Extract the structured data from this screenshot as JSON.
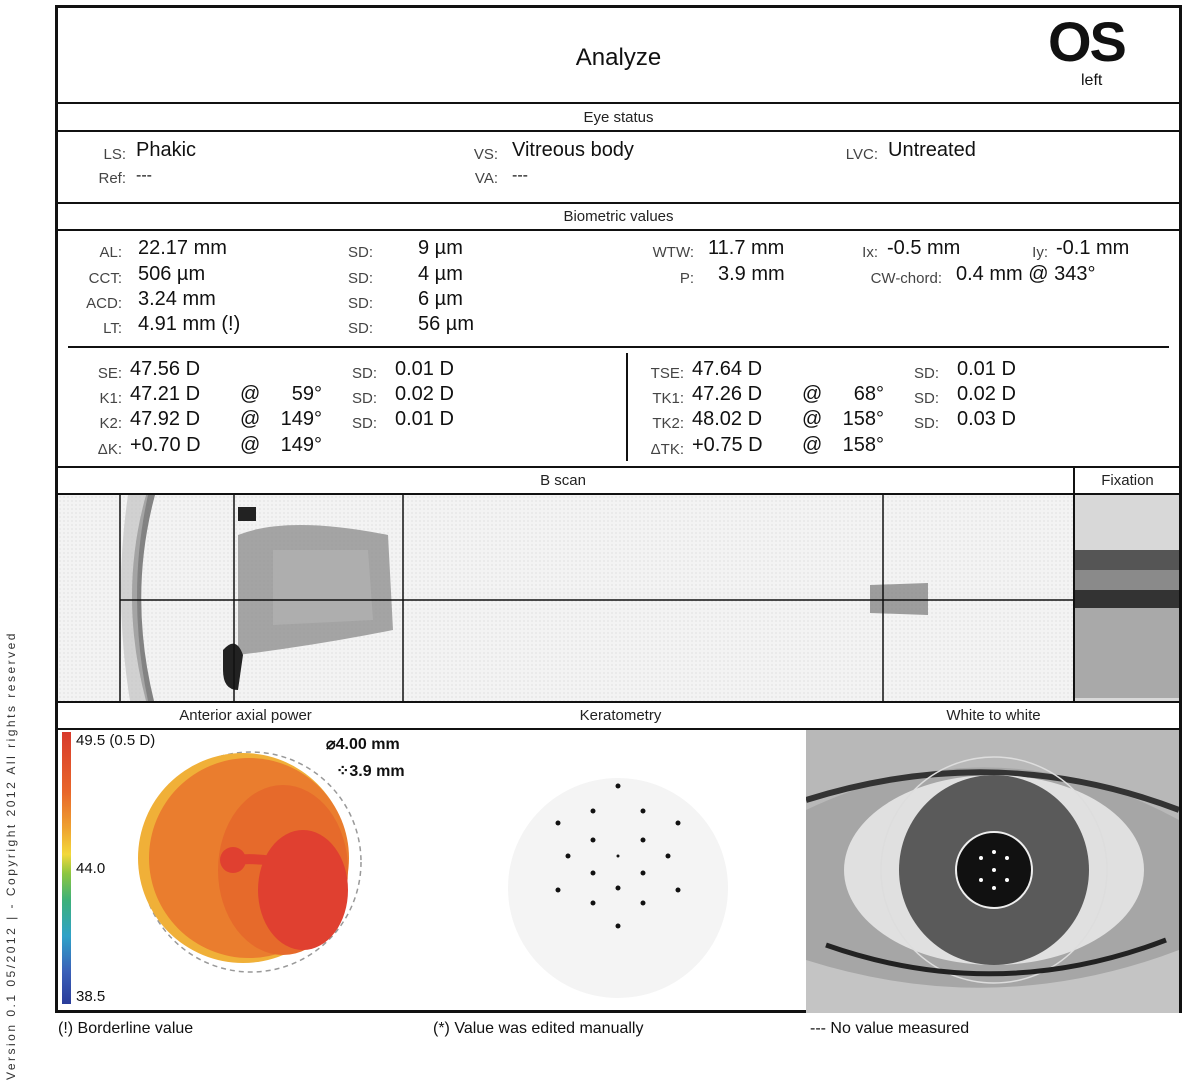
{
  "page": {
    "title": "Analyze",
    "eye": "OS",
    "eye_sub": "left",
    "side_text": "Version 0.1  05/2012  |  - Copyright 2012 All rights reserved"
  },
  "eye_status": {
    "header": "Eye status",
    "ls_label": "LS:",
    "ls_value": "Phakic",
    "ref_label": "Ref:",
    "ref_value": "---",
    "vs_label": "VS:",
    "vs_value": "Vitreous body",
    "va_label": "VA:",
    "va_value": "---",
    "lvc_label": "LVC:",
    "lvc_value": "Untreated"
  },
  "biometric": {
    "header": "Biometric values",
    "rows": [
      {
        "label": "AL:",
        "value": "22.17 mm",
        "sd_label": "SD:",
        "sd_value": "9 µm"
      },
      {
        "label": "CCT:",
        "value": "506 µm",
        "sd_label": "SD:",
        "sd_value": "4 µm"
      },
      {
        "label": "ACD:",
        "value": "3.24 mm",
        "sd_label": "SD:",
        "sd_value": "6 µm"
      },
      {
        "label": "LT:",
        "value": "4.91 mm  (!)",
        "sd_label": "SD:",
        "sd_value": "56 µm"
      }
    ],
    "wtw_label": "WTW:",
    "wtw_value": "11.7 mm",
    "p_label": "P:",
    "p_value": "3.9 mm",
    "ix_label": "Ix:",
    "ix_value": "-0.5 mm",
    "iy_label": "Iy:",
    "iy_value": "-0.1 mm",
    "cw_label": "CW-chord:",
    "cw_value": "0.4 mm @ 343°"
  },
  "keratometry_values": {
    "left": [
      {
        "label": "SE:",
        "value": "47.56 D",
        "at": "",
        "axis": "",
        "sd_label": "SD:",
        "sd_value": "0.01 D"
      },
      {
        "label": "K1:",
        "value": "47.21 D",
        "at": "@",
        "axis": "59°",
        "sd_label": "SD:",
        "sd_value": "0.02 D"
      },
      {
        "label": "K2:",
        "value": "47.92 D",
        "at": "@",
        "axis": "149°",
        "sd_label": "SD:",
        "sd_value": "0.01 D"
      },
      {
        "label": "ΔK:",
        "value": "+0.70 D",
        "at": "@",
        "axis": "149°",
        "sd_label": "",
        "sd_value": ""
      }
    ],
    "right": [
      {
        "label": "TSE:",
        "value": "47.64 D",
        "at": "",
        "axis": "",
        "sd_label": "SD:",
        "sd_value": "0.01 D"
      },
      {
        "label": "TK1:",
        "value": "47.26 D",
        "at": "@",
        "axis": "68°",
        "sd_label": "SD:",
        "sd_value": "0.02 D"
      },
      {
        "label": "TK2:",
        "value": "48.02 D",
        "at": "@",
        "axis": "158°",
        "sd_label": "SD:",
        "sd_value": "0.03 D"
      },
      {
        "label": "ΔTK:",
        "value": "+0.75 D",
        "at": "@",
        "axis": "158°",
        "sd_label": "",
        "sd_value": ""
      }
    ]
  },
  "bscan": {
    "header": "B scan",
    "fixation_header": "Fixation"
  },
  "bottom": {
    "axial_header": "Anterior axial power",
    "kerato_header": "Keratometry",
    "wtw_header": "White to white",
    "scale_top": "49.5 (0.5 D)",
    "scale_mid": "44.0",
    "scale_bot": "38.5",
    "diameter_solid": "4.00 mm",
    "diameter_dashed": "3.9 mm"
  },
  "footer": {
    "borderline": "(!) Borderline value",
    "edited": "(*) Value was edited manually",
    "nomeasure": "--- No value measured"
  },
  "colors": {
    "map_red": "#e04030",
    "map_orange": "#ea7a2e",
    "map_yellow": "#f2b03a"
  }
}
